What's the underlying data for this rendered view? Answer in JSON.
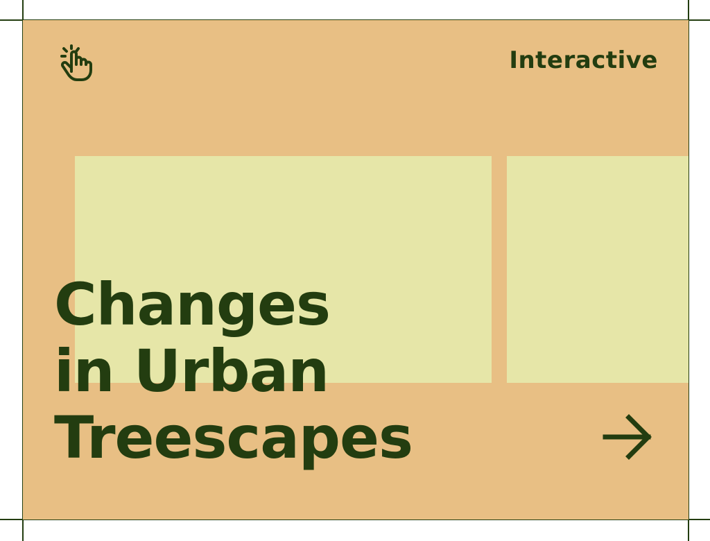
{
  "card": {
    "tag": "Interactive",
    "title_lines": [
      "Changes",
      "in Urban",
      "Treescapes"
    ]
  },
  "icons": {
    "top_left": "tap-hand-icon",
    "bottom_right": "arrow-right-icon"
  },
  "colors": {
    "card_background": "#e8bf84",
    "panel": "#e6e6a8",
    "text": "#233d10",
    "page_background": "#ffffff"
  }
}
